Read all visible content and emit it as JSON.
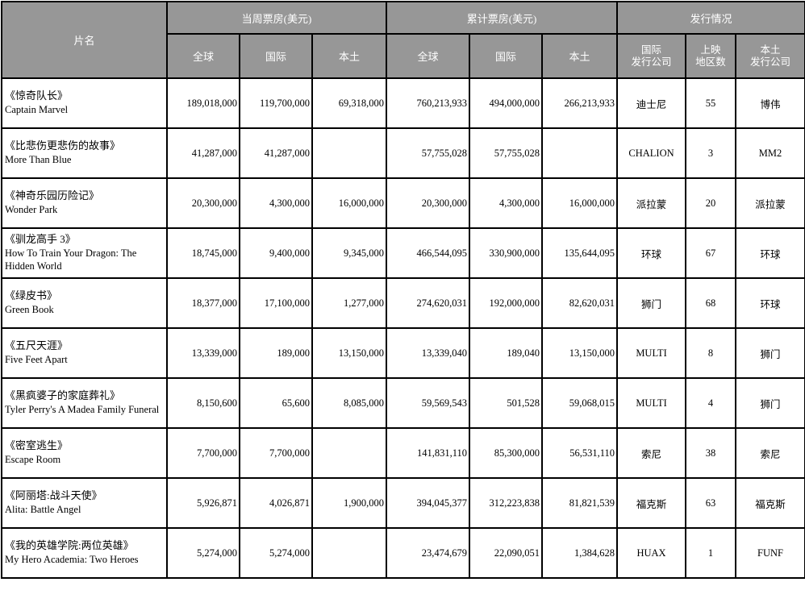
{
  "colors": {
    "page_bg": "#ffffff",
    "header_bg": "#979797",
    "header_text": "#ffffff",
    "border": "#000000",
    "body_text": "#000000"
  },
  "table": {
    "header": {
      "film": "片名",
      "weekly_group": "当周票房(美元)",
      "cumulative_group": "累计票房(美元)",
      "distribution_group": "发行情况",
      "sub": {
        "global": "全球",
        "international": "国际",
        "domestic": "本土",
        "intl_distributor": [
          "国际",
          "发行公司"
        ],
        "region_count": [
          "上映",
          "地区数"
        ],
        "domestic_distributor": [
          "本土",
          "发行公司"
        ]
      }
    },
    "rows": [
      {
        "title_cn": "《惊奇队长》",
        "title_en": "Captain Marvel",
        "weekly": [
          "189,018,000",
          "119,700,000",
          "69,318,000"
        ],
        "cumulative": [
          "760,213,933",
          "494,000,000",
          "266,213,933"
        ],
        "intl_distributor": "迪士尼",
        "region_count": "55",
        "domestic_distributor": "博伟"
      },
      {
        "title_cn": "《比悲伤更悲伤的故事》",
        "title_en": "More Than Blue",
        "weekly": [
          "41,287,000",
          "41,287,000",
          ""
        ],
        "cumulative": [
          "57,755,028",
          "57,755,028",
          ""
        ],
        "intl_distributor": "CHALION",
        "region_count": "3",
        "domestic_distributor": "MM2"
      },
      {
        "title_cn": "《神奇乐园历险记》",
        "title_en": "Wonder Park",
        "weekly": [
          "20,300,000",
          "4,300,000",
          "16,000,000"
        ],
        "cumulative": [
          "20,300,000",
          "4,300,000",
          "16,000,000"
        ],
        "intl_distributor": "派拉蒙",
        "region_count": "20",
        "domestic_distributor": "派拉蒙"
      },
      {
        "title_cn": "《驯龙高手 3》",
        "title_en": "How To Train Your Dragon: The Hidden World",
        "weekly": [
          "18,745,000",
          "9,400,000",
          "9,345,000"
        ],
        "cumulative": [
          "466,544,095",
          "330,900,000",
          "135,644,095"
        ],
        "intl_distributor": "环球",
        "region_count": "67",
        "domestic_distributor": "环球"
      },
      {
        "title_cn": "《绿皮书》",
        "title_en": "Green Book",
        "weekly": [
          "18,377,000",
          "17,100,000",
          "1,277,000"
        ],
        "cumulative": [
          "274,620,031",
          "192,000,000",
          "82,620,031"
        ],
        "intl_distributor": "狮门",
        "region_count": "68",
        "domestic_distributor": "环球"
      },
      {
        "title_cn": "《五尺天涯》",
        "title_en": "Five Feet Apart",
        "weekly": [
          "13,339,000",
          "189,000",
          "13,150,000"
        ],
        "cumulative": [
          "13,339,040",
          "189,040",
          "13,150,000"
        ],
        "intl_distributor": "MULTI",
        "region_count": "8",
        "domestic_distributor": "狮门"
      },
      {
        "title_cn": "《黑疯婆子的家庭葬礼》",
        "title_en": "Tyler Perry's A Madea Family Funeral",
        "weekly": [
          "8,150,600",
          "65,600",
          "8,085,000"
        ],
        "cumulative": [
          "59,569,543",
          "501,528",
          "59,068,015"
        ],
        "intl_distributor": "MULTI",
        "region_count": "4",
        "domestic_distributor": "狮门"
      },
      {
        "title_cn": "《密室逃生》",
        "title_en": "Escape Room",
        "weekly": [
          "7,700,000",
          "7,700,000",
          ""
        ],
        "cumulative": [
          "141,831,110",
          "85,300,000",
          "56,531,110"
        ],
        "intl_distributor": "索尼",
        "region_count": "38",
        "domestic_distributor": "索尼"
      },
      {
        "title_cn": "《阿丽塔:战斗天使》",
        "title_en": "Alita: Battle Angel",
        "weekly": [
          "5,926,871",
          "4,026,871",
          "1,900,000"
        ],
        "cumulative": [
          "394,045,377",
          "312,223,838",
          "81,821,539"
        ],
        "intl_distributor": "福克斯",
        "region_count": "63",
        "domestic_distributor": "福克斯"
      },
      {
        "title_cn": "《我的英雄学院:两位英雄》",
        "title_en": "My Hero Academia: Two Heroes",
        "weekly": [
          "5,274,000",
          "5,274,000",
          ""
        ],
        "cumulative": [
          "23,474,679",
          "22,090,051",
          "1,384,628"
        ],
        "intl_distributor": "HUAX",
        "region_count": "1",
        "domestic_distributor": "FUNF"
      }
    ]
  }
}
